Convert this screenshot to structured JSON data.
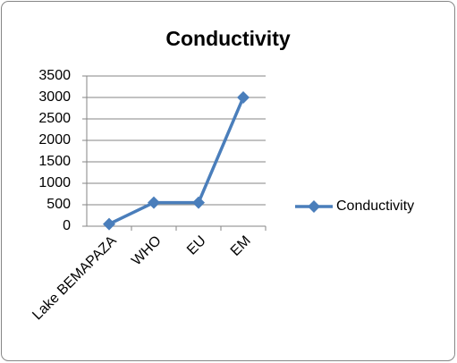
{
  "chart_data": {
    "type": "line",
    "title": "Conductivity",
    "categories": [
      "Lake BEMAPAZA",
      "WHO",
      "EU",
      "EM"
    ],
    "series": [
      {
        "name": "Conductivity",
        "color": "#4a7ebb",
        "values": [
          50,
          550,
          550,
          3000
        ]
      }
    ],
    "ylim": [
      0,
      3500
    ],
    "yticks": [
      0,
      500,
      1000,
      1500,
      2000,
      2500,
      3000,
      3500
    ],
    "grid": true,
    "legend": "right"
  }
}
